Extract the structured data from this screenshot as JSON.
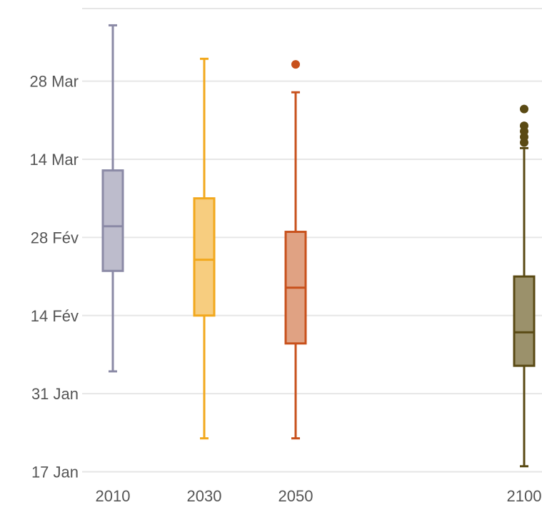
{
  "chart_data": {
    "type": "box",
    "title": "",
    "xlabel": "",
    "ylabel": "",
    "y_axis": {
      "type": "date",
      "ticks": [
        "17 Jan",
        "31 Jan",
        "14 Fév",
        "28 Fév",
        "14 Mar",
        "28 Mar"
      ],
      "range": [
        "14 Jan",
        "10 Avr"
      ]
    },
    "grid": true,
    "legend": "none",
    "categories": [
      "2010",
      "2030",
      "2050",
      "2100"
    ],
    "boxes": [
      {
        "category": "2010",
        "color": "#8b8aa6",
        "fill": "#bdbccc",
        "whisker_low": "4 Feb",
        "q1": "22 Feb",
        "median": "2 Mar",
        "q3": "12 Mar",
        "whisker_high": "7 Apr",
        "outliers": []
      },
      {
        "category": "2030",
        "color": "#f2a81d",
        "fill": "#f7cd7f",
        "whisker_low": "23 Jan",
        "q1": "14 Feb",
        "median": "24 Feb",
        "q3": "7 Mar",
        "whisker_high": "1 Apr",
        "outliers": []
      },
      {
        "category": "2050",
        "color": "#c8511c",
        "fill": "#e0a283",
        "whisker_low": "23 Jan",
        "q1": "9 Feb",
        "median": "19 Feb",
        "q3": "1 Mar",
        "whisker_high": "26 Mar",
        "outliers": [
          "31 Mar"
        ]
      },
      {
        "category": "2100",
        "color": "#5a4a14",
        "fill": "#9b916b",
        "whisker_low": "18 Jan",
        "q1": "5 Feb",
        "median": "11 Feb",
        "q3": "21 Feb",
        "whisker_high": "16 Mar",
        "outliers": [
          "17 Mar",
          "18 Mar",
          "19 Mar",
          "20 Mar",
          "23 Mar"
        ]
      }
    ]
  }
}
